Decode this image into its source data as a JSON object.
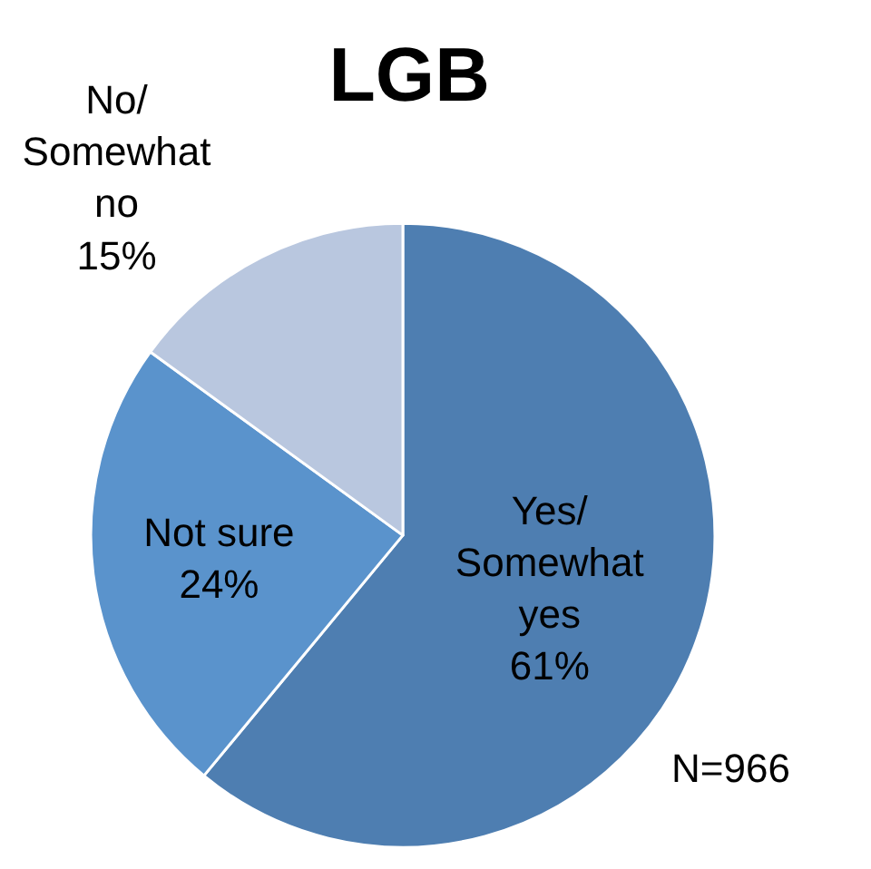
{
  "chart_data": {
    "type": "pie",
    "title": "LGB",
    "categories": [
      "Yes/\nSomewhat\nyes",
      "Not sure",
      "No/\nSomewhat\nno"
    ],
    "values": [
      61,
      24,
      15
    ],
    "value_labels": [
      "61%",
      "24%",
      "15%"
    ],
    "colors": [
      "#4e7eb1",
      "#5a93cc",
      "#b9c7df"
    ],
    "annotations": [
      "N=966"
    ]
  }
}
